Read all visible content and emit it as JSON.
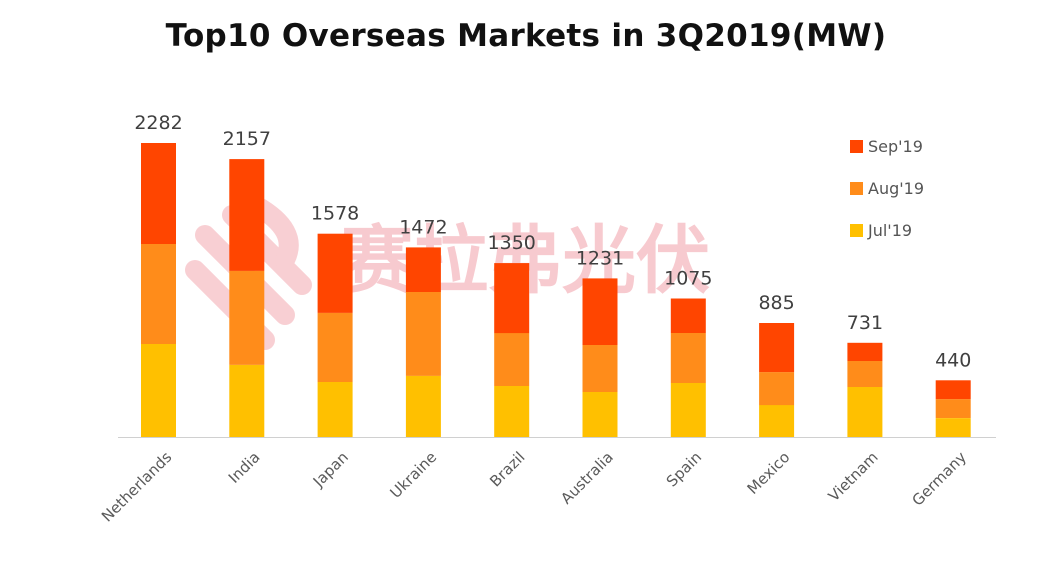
{
  "chart_data": {
    "type": "bar",
    "stacked": true,
    "title": "Top10 Overseas Markets in 3Q2019(MW)",
    "xlabel": "",
    "ylabel": "",
    "ylim": [
      0,
      2282
    ],
    "grid": false,
    "legend_position": "top-right",
    "categories": [
      "Netherlands",
      "India",
      "Japan",
      "Ukraine",
      "Brazil",
      "Australia",
      "Spain",
      "Mexico",
      "Vietnam",
      "Germany"
    ],
    "totals": [
      2282,
      2157,
      1578,
      1472,
      1350,
      1231,
      1075,
      885,
      731,
      440
    ],
    "series": [
      {
        "name": "Jul'19",
        "color": "#ffc000",
        "values": [
          722,
          559,
          427,
          474,
          396,
          349,
          419,
          248,
          388,
          147
        ]
      },
      {
        "name": "Aug'19",
        "color": "#ff8c1a",
        "values": [
          776,
          730,
          536,
          652,
          411,
          365,
          388,
          256,
          202,
          147
        ]
      },
      {
        "name": "Sep'19",
        "color": "#ff4500",
        "values": [
          784,
          868,
          615,
          346,
          543,
          517,
          268,
          381,
          141,
          146
        ]
      }
    ],
    "legend": [
      "Sep'19",
      "Aug'19",
      "Jul'19"
    ]
  },
  "watermark": "赛拉弗光伏"
}
